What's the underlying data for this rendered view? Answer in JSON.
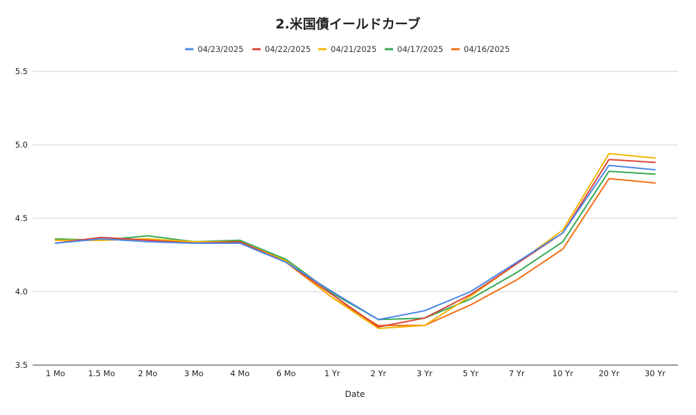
{
  "chart_data": {
    "type": "line",
    "title": "2.米国債イールドカーブ",
    "xlabel": "Date",
    "ylabel": "",
    "categories": [
      "1 Mo",
      "1.5 Mo",
      "2 Mo",
      "3 Mo",
      "4 Mo",
      "6 Mo",
      "1 Yr",
      "2 Yr",
      "3 Yr",
      "5 Yr",
      "7 Yr",
      "10 Yr",
      "20 Yr",
      "30 Yr"
    ],
    "ylim": [
      3.5,
      5.5
    ],
    "yticks": [
      "3.5",
      "4.0",
      "4.5",
      "5.0",
      "5.5"
    ],
    "grid": true,
    "legend_position": "top-center",
    "series": [
      {
        "name": "04/23/2025",
        "color": "#4a86e8",
        "values": [
          4.33,
          4.36,
          4.34,
          4.33,
          4.33,
          4.2,
          4.0,
          3.81,
          3.87,
          4.0,
          4.2,
          4.4,
          4.86,
          4.83
        ]
      },
      {
        "name": "04/22/2025",
        "color": "#db4437",
        "values": [
          4.33,
          4.37,
          4.35,
          4.33,
          4.34,
          4.2,
          3.98,
          3.76,
          3.82,
          3.98,
          4.19,
          4.4,
          4.9,
          4.88
        ]
      },
      {
        "name": "04/21/2025",
        "color": "#f4b400",
        "values": [
          4.35,
          4.35,
          4.36,
          4.34,
          4.34,
          4.21,
          3.96,
          3.75,
          3.77,
          3.97,
          4.19,
          4.42,
          4.94,
          4.91
        ]
      },
      {
        "name": "04/17/2025",
        "color": "#34a853",
        "values": [
          4.36,
          4.35,
          4.38,
          4.34,
          4.35,
          4.22,
          3.99,
          3.81,
          3.82,
          3.95,
          4.13,
          4.34,
          4.82,
          4.8
        ]
      },
      {
        "name": "04/16/2025",
        "color": "#f46d12",
        "values": [
          4.35,
          4.35,
          4.36,
          4.33,
          4.33,
          4.2,
          3.96,
          3.77,
          3.77,
          3.91,
          4.08,
          4.29,
          4.77,
          4.74
        ]
      }
    ]
  }
}
